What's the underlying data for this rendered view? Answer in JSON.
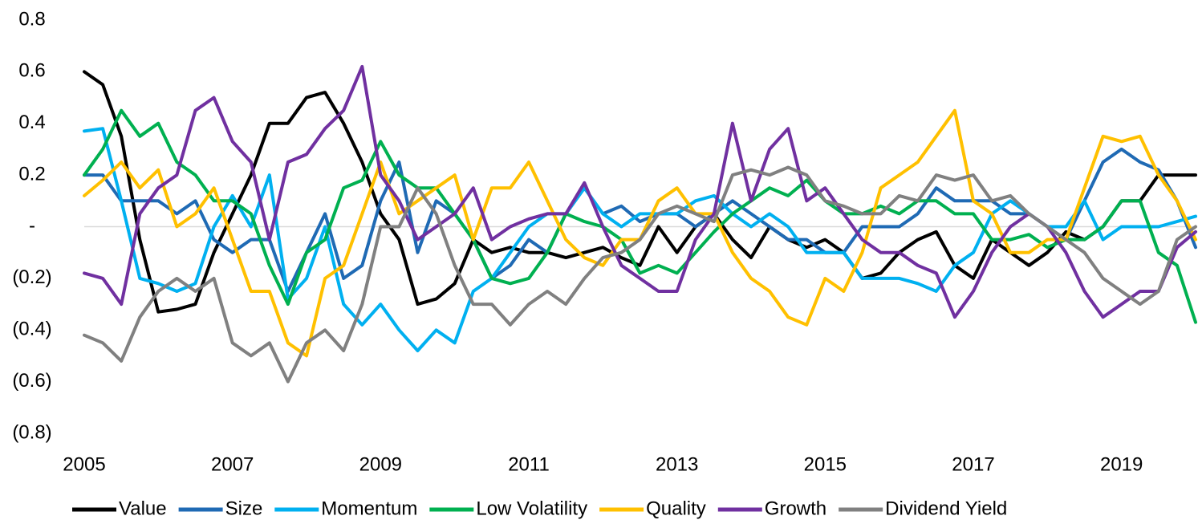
{
  "chart_data": {
    "type": "line",
    "x": [
      2005,
      2005.25,
      2005.5,
      2005.75,
      2006,
      2006.25,
      2006.5,
      2006.75,
      2007,
      2007.25,
      2007.5,
      2007.75,
      2008,
      2008.25,
      2008.5,
      2008.75,
      2009,
      2009.25,
      2009.5,
      2009.75,
      2010,
      2010.25,
      2010.5,
      2010.75,
      2011,
      2011.25,
      2011.5,
      2011.75,
      2012,
      2012.25,
      2012.5,
      2012.75,
      2013,
      2013.25,
      2013.5,
      2013.75,
      2014,
      2014.25,
      2014.5,
      2014.75,
      2015,
      2015.25,
      2015.5,
      2015.75,
      2016,
      2016.25,
      2016.5,
      2016.75,
      2017,
      2017.25,
      2017.5,
      2017.75,
      2018,
      2018.25,
      2018.5,
      2018.75,
      2019,
      2019.25,
      2019.5,
      2019.75,
      2020
    ],
    "series": [
      {
        "name": "Value",
        "color": "#000000",
        "values": [
          0.6,
          0.55,
          0.35,
          -0.05,
          -0.33,
          -0.32,
          -0.3,
          -0.1,
          0.05,
          0.2,
          0.4,
          0.4,
          0.5,
          0.52,
          0.4,
          0.25,
          0.05,
          -0.05,
          -0.3,
          -0.28,
          -0.22,
          -0.05,
          -0.1,
          -0.08,
          -0.1,
          -0.1,
          -0.12,
          -0.1,
          -0.08,
          -0.12,
          -0.15,
          0.0,
          -0.1,
          0.0,
          0.05,
          -0.05,
          -0.12,
          0.0,
          -0.05,
          -0.08,
          -0.05,
          -0.1,
          -0.2,
          -0.18,
          -0.1,
          -0.05,
          -0.02,
          -0.15,
          -0.2,
          -0.05,
          -0.1,
          -0.15,
          -0.1,
          -0.02,
          -0.05,
          0.0,
          0.1,
          0.1,
          0.2,
          0.2,
          0.2
        ]
      },
      {
        "name": "Size",
        "color": "#1F6AB4",
        "values": [
          0.2,
          0.2,
          0.1,
          0.1,
          0.1,
          0.05,
          0.1,
          -0.05,
          -0.1,
          -0.05,
          -0.05,
          -0.25,
          -0.1,
          0.05,
          -0.2,
          -0.15,
          0.1,
          0.25,
          -0.1,
          0.1,
          0.05,
          -0.05,
          -0.2,
          -0.15,
          -0.05,
          -0.1,
          0.05,
          0.15,
          0.05,
          0.08,
          0.02,
          0.05,
          0.05,
          0.0,
          0.05,
          0.1,
          0.05,
          0.0,
          -0.05,
          -0.05,
          -0.1,
          -0.1,
          0.0,
          0.0,
          0.0,
          0.05,
          0.15,
          0.1,
          0.1,
          0.1,
          0.05,
          0.05,
          0.0,
          -0.05,
          0.1,
          0.25,
          0.3,
          0.25,
          0.22,
          0.1,
          -0.08
        ]
      },
      {
        "name": "Momentum",
        "color": "#00B0F0",
        "values": [
          0.37,
          0.38,
          0.1,
          -0.2,
          -0.22,
          -0.25,
          -0.22,
          0.0,
          0.12,
          0.0,
          0.2,
          -0.28,
          -0.2,
          0.0,
          -0.3,
          -0.38,
          -0.3,
          -0.4,
          -0.48,
          -0.4,
          -0.45,
          -0.25,
          -0.2,
          -0.1,
          0.0,
          0.05,
          0.05,
          0.15,
          0.05,
          0.0,
          0.05,
          0.05,
          0.05,
          0.1,
          0.12,
          0.05,
          0.0,
          0.05,
          0.0,
          -0.1,
          -0.1,
          -0.1,
          -0.2,
          -0.2,
          -0.2,
          -0.22,
          -0.25,
          -0.15,
          -0.1,
          0.05,
          0.1,
          0.05,
          0.0,
          0.0,
          0.1,
          -0.05,
          0.0,
          0.0,
          0.0,
          0.02,
          0.04
        ]
      },
      {
        "name": "Low Volatility",
        "color": "#00B050",
        "values": [
          0.2,
          0.3,
          0.45,
          0.35,
          0.4,
          0.25,
          0.2,
          0.1,
          0.1,
          0.05,
          -0.15,
          -0.3,
          -0.1,
          -0.05,
          0.15,
          0.18,
          0.33,
          0.2,
          0.15,
          0.15,
          0.05,
          -0.05,
          -0.2,
          -0.22,
          -0.2,
          -0.1,
          0.05,
          0.02,
          0.0,
          -0.05,
          -0.18,
          -0.15,
          -0.18,
          -0.1,
          -0.02,
          0.05,
          0.1,
          0.15,
          0.12,
          0.18,
          0.1,
          0.05,
          0.05,
          0.08,
          0.05,
          0.1,
          0.1,
          0.05,
          0.05,
          -0.05,
          -0.05,
          -0.03,
          -0.08,
          -0.05,
          -0.05,
          0.0,
          0.1,
          0.1,
          -0.1,
          -0.15,
          -0.37
        ]
      },
      {
        "name": "Quality",
        "color": "#FFC000",
        "values": [
          0.12,
          0.18,
          0.25,
          0.15,
          0.22,
          0.0,
          0.05,
          0.15,
          -0.05,
          -0.25,
          -0.25,
          -0.45,
          -0.5,
          -0.2,
          -0.15,
          0.05,
          0.25,
          0.05,
          0.1,
          0.15,
          0.2,
          -0.05,
          0.15,
          0.15,
          0.25,
          0.1,
          -0.05,
          -0.12,
          -0.15,
          -0.05,
          -0.05,
          0.1,
          0.15,
          0.05,
          0.05,
          -0.1,
          -0.2,
          -0.25,
          -0.35,
          -0.38,
          -0.2,
          -0.25,
          -0.1,
          0.15,
          0.2,
          0.25,
          0.35,
          0.45,
          0.1,
          0.05,
          -0.1,
          -0.1,
          -0.05,
          -0.05,
          0.15,
          0.35,
          0.33,
          0.35,
          0.2,
          0.1,
          -0.05
        ]
      },
      {
        "name": "Growth",
        "color": "#7030A0",
        "values": [
          -0.18,
          -0.2,
          -0.3,
          0.05,
          0.15,
          0.2,
          0.45,
          0.5,
          0.33,
          0.25,
          -0.05,
          0.25,
          0.28,
          0.38,
          0.45,
          0.62,
          0.2,
          0.1,
          -0.05,
          0.0,
          0.05,
          0.15,
          -0.05,
          0.0,
          0.03,
          0.05,
          0.05,
          0.17,
          0.0,
          -0.15,
          -0.2,
          -0.25,
          -0.25,
          -0.05,
          0.05,
          0.4,
          0.1,
          0.3,
          0.38,
          0.1,
          0.15,
          0.05,
          -0.05,
          -0.1,
          -0.1,
          -0.15,
          -0.18,
          -0.35,
          -0.25,
          -0.1,
          0.0,
          0.05,
          0.0,
          -0.1,
          -0.25,
          -0.35,
          -0.3,
          -0.25,
          -0.25,
          -0.08,
          -0.02
        ]
      },
      {
        "name": "Dividend Yield",
        "color": "#808080",
        "values": [
          -0.42,
          -0.45,
          -0.52,
          -0.35,
          -0.25,
          -0.2,
          -0.25,
          -0.2,
          -0.45,
          -0.5,
          -0.45,
          -0.6,
          -0.45,
          -0.4,
          -0.48,
          -0.3,
          0.0,
          0.0,
          0.15,
          0.05,
          -0.15,
          -0.3,
          -0.3,
          -0.38,
          -0.3,
          -0.25,
          -0.3,
          -0.2,
          -0.12,
          -0.1,
          -0.05,
          0.05,
          0.08,
          0.05,
          0.02,
          0.2,
          0.22,
          0.2,
          0.23,
          0.2,
          0.1,
          0.08,
          0.05,
          0.05,
          0.12,
          0.1,
          0.2,
          0.18,
          0.2,
          0.1,
          0.12,
          0.05,
          0.0,
          -0.05,
          -0.1,
          -0.2,
          -0.25,
          -0.3,
          -0.25,
          -0.05,
          0.0
        ]
      }
    ],
    "xlim": [
      2005,
      2020
    ],
    "xticks": [
      2005,
      2007,
      2009,
      2011,
      2013,
      2015,
      2017,
      2019
    ],
    "ylim": [
      -0.8,
      0.8
    ],
    "yticks": [
      0.8,
      0.6,
      0.4,
      0.2,
      {
        "value": 0,
        "label": "-"
      },
      {
        "value": -0.2,
        "label": "(0.2)"
      },
      {
        "value": -0.4,
        "label": "(0.4)"
      },
      {
        "value": -0.6,
        "label": "(0.6)"
      },
      {
        "value": -0.8,
        "label": "(0.8)"
      }
    ],
    "legend": "bottom"
  }
}
